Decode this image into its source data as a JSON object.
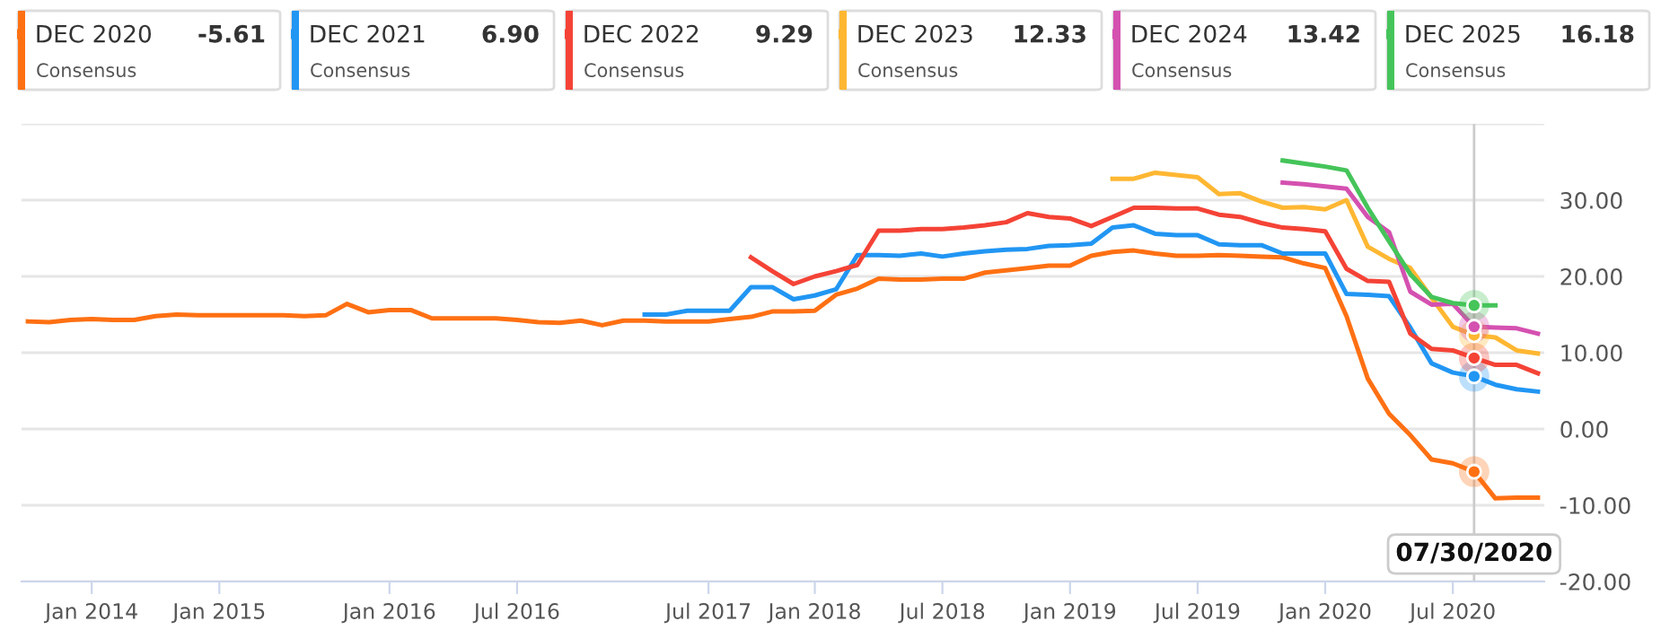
{
  "chart_data": {
    "type": "line",
    "categories": [
      null,
      null,
      null,
      "Jan 2014",
      null,
      null,
      null,
      null,
      null,
      "Jan 2015",
      null,
      null,
      null,
      null,
      null,
      null,
      null,
      "Jan 2016",
      null,
      null,
      null,
      null,
      null,
      "Jul 2016",
      null,
      null,
      null,
      null,
      null,
      null,
      null,
      null,
      "Jul 2017",
      null,
      null,
      null,
      null,
      "Jan 2018",
      null,
      null,
      null,
      null,
      null,
      "Jul 2018",
      null,
      null,
      null,
      null,
      null,
      "Jan 2019",
      null,
      null,
      null,
      null,
      null,
      "Jul 2019",
      null,
      null,
      null,
      null,
      null,
      "Jan 2020",
      null,
      null,
      null,
      null,
      null,
      "Jul 2020",
      "07/30/2020",
      null,
      null,
      null
    ],
    "series": [
      {
        "name": "DEC 2020",
        "color": "#ff7013",
        "values": [
          14.1,
          14.0,
          14.3,
          14.4,
          14.3,
          14.3,
          14.8,
          15.0,
          14.9,
          14.9,
          14.9,
          14.9,
          14.9,
          14.8,
          14.9,
          16.4,
          15.3,
          15.6,
          15.6,
          14.5,
          14.5,
          14.5,
          14.5,
          14.3,
          14.0,
          13.9,
          14.2,
          13.6,
          14.2,
          14.2,
          14.1,
          14.1,
          14.1,
          14.4,
          14.7,
          15.4,
          15.4,
          15.5,
          17.6,
          18.4,
          19.7,
          19.6,
          19.6,
          19.7,
          19.7,
          20.5,
          20.8,
          21.1,
          21.4,
          21.4,
          22.7,
          23.2,
          23.4,
          23.0,
          22.7,
          22.7,
          22.8,
          22.7,
          22.6,
          22.5,
          21.7,
          21.1,
          14.8,
          6.6,
          2.0,
          -0.8,
          -4.0,
          -4.5,
          -5.6,
          -9.1,
          -9.0,
          -9.0
        ]
      },
      {
        "name": "DEC 2021",
        "color": "#2196f3",
        "values": [
          null,
          null,
          null,
          null,
          null,
          null,
          null,
          null,
          null,
          null,
          null,
          null,
          null,
          null,
          null,
          null,
          null,
          null,
          null,
          null,
          null,
          null,
          null,
          null,
          null,
          null,
          null,
          null,
          null,
          15.0,
          15.0,
          15.5,
          15.5,
          15.5,
          18.6,
          18.6,
          17.0,
          17.5,
          18.3,
          22.8,
          22.8,
          22.7,
          23.0,
          22.6,
          23.0,
          23.3,
          23.5,
          23.6,
          24.0,
          24.1,
          24.3,
          26.4,
          26.7,
          25.6,
          25.4,
          25.4,
          24.2,
          24.1,
          24.1,
          23.0,
          23.0,
          23.0,
          17.7,
          17.6,
          17.4,
          13.3,
          8.6,
          7.4,
          6.9,
          5.8,
          5.2,
          4.9
        ]
      },
      {
        "name": "DEC 2022",
        "color": "#f44336",
        "values": [
          null,
          null,
          null,
          null,
          null,
          null,
          null,
          null,
          null,
          null,
          null,
          null,
          null,
          null,
          null,
          null,
          null,
          null,
          null,
          null,
          null,
          null,
          null,
          null,
          null,
          null,
          null,
          null,
          null,
          null,
          null,
          null,
          null,
          null,
          22.5,
          20.7,
          19.0,
          20.0,
          20.7,
          21.5,
          26.0,
          26.0,
          26.2,
          26.2,
          26.4,
          26.7,
          27.1,
          28.3,
          27.8,
          27.6,
          26.6,
          27.8,
          29.0,
          29.0,
          28.9,
          28.9,
          28.1,
          27.8,
          27.0,
          26.4,
          26.2,
          25.9,
          21.0,
          19.4,
          19.3,
          12.5,
          10.5,
          10.3,
          9.3,
          8.4,
          8.4,
          7.3
        ]
      },
      {
        "name": "DEC 2023",
        "color": "#ffb732",
        "values": [
          null,
          null,
          null,
          null,
          null,
          null,
          null,
          null,
          null,
          null,
          null,
          null,
          null,
          null,
          null,
          null,
          null,
          null,
          null,
          null,
          null,
          null,
          null,
          null,
          null,
          null,
          null,
          null,
          null,
          null,
          null,
          null,
          null,
          null,
          null,
          null,
          null,
          null,
          null,
          null,
          null,
          null,
          null,
          null,
          null,
          null,
          null,
          null,
          null,
          null,
          null,
          32.8,
          32.8,
          33.6,
          33.3,
          33.0,
          30.8,
          30.9,
          29.8,
          29.0,
          29.1,
          28.8,
          30.0,
          23.9,
          22.3,
          21.1,
          17.2,
          13.4,
          12.3,
          12.0,
          10.3,
          9.9
        ]
      },
      {
        "name": "DEC 2024",
        "color": "#d451b0",
        "values": [
          null,
          null,
          null,
          null,
          null,
          null,
          null,
          null,
          null,
          null,
          null,
          null,
          null,
          null,
          null,
          null,
          null,
          null,
          null,
          null,
          null,
          null,
          null,
          null,
          null,
          null,
          null,
          null,
          null,
          null,
          null,
          null,
          null,
          null,
          null,
          null,
          null,
          null,
          null,
          null,
          null,
          null,
          null,
          null,
          null,
          null,
          null,
          null,
          null,
          null,
          null,
          null,
          null,
          null,
          null,
          null,
          null,
          null,
          null,
          32.3,
          32.1,
          31.8,
          31.5,
          27.8,
          25.8,
          18.0,
          16.3,
          16.4,
          13.4,
          13.3,
          13.2,
          12.5
        ]
      },
      {
        "name": "DEC 2025",
        "color": "#45c45a",
        "values": [
          null,
          null,
          null,
          null,
          null,
          null,
          null,
          null,
          null,
          null,
          null,
          null,
          null,
          null,
          null,
          null,
          null,
          null,
          null,
          null,
          null,
          null,
          null,
          null,
          null,
          null,
          null,
          null,
          null,
          null,
          null,
          null,
          null,
          null,
          null,
          null,
          null,
          null,
          null,
          null,
          null,
          null,
          null,
          null,
          null,
          null,
          null,
          null,
          null,
          null,
          null,
          null,
          null,
          null,
          null,
          null,
          null,
          null,
          null,
          35.2,
          34.8,
          34.4,
          33.9,
          29.0,
          24.6,
          20.3,
          17.3,
          16.5,
          16.2,
          16.2,
          null,
          null
        ]
      }
    ],
    "ylim": [
      -20,
      40
    ],
    "yticks": [
      {
        "value": -20,
        "label": "-20.00"
      },
      {
        "value": -10,
        "label": "-10.00"
      },
      {
        "value": 0,
        "label": "0.00"
      },
      {
        "value": 10,
        "label": "10.00"
      },
      {
        "value": 20,
        "label": "20.00"
      },
      {
        "value": 30,
        "label": "30.00"
      },
      {
        "value": 40,
        "label": null
      }
    ],
    "grid": "y",
    "legend": "top",
    "marker": "none",
    "line_style": "solid",
    "ref_lines": [
      {
        "axis": "x",
        "value": "07/30/2020",
        "color": "#cccccc"
      }
    ],
    "annotations": [
      "-5.61",
      "6.90",
      "9.29",
      "12.33",
      "13.42",
      "16.18",
      "Consensus",
      "Consensus",
      "Consensus",
      "Consensus",
      "Consensus",
      "Consensus"
    ]
  }
}
